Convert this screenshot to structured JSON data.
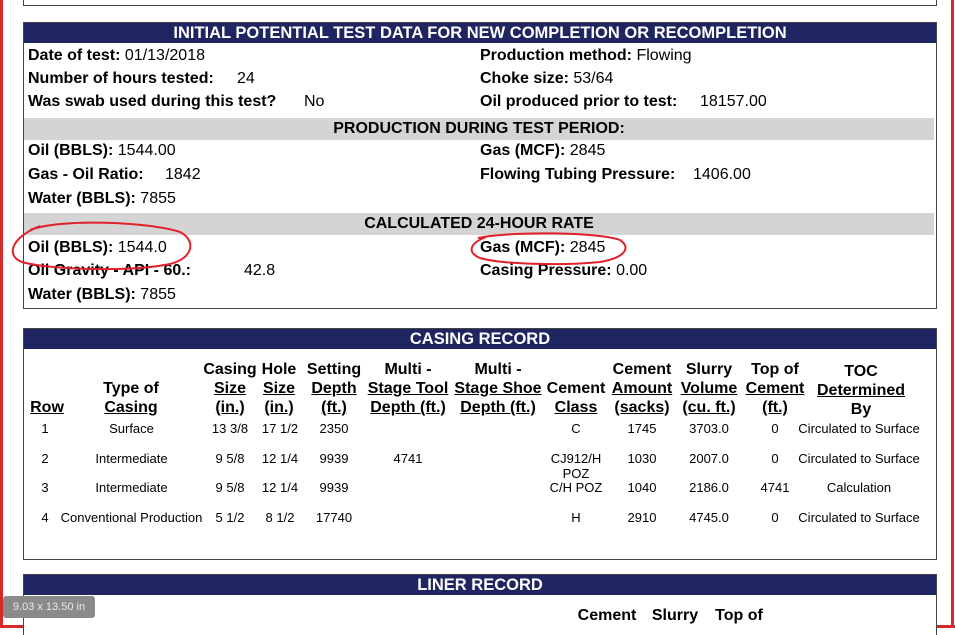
{
  "initial_potential": {
    "title": "INITIAL POTENTIAL TEST DATA FOR NEW COMPLETION OR RECOMPLETION",
    "date_of_test_label": "Date of test:",
    "date_of_test": "01/13/2018",
    "hours_tested_label": "Number of hours tested:",
    "hours_tested": "24",
    "swab_label": "Was swab used during this test?",
    "swab": "No",
    "production_method_label": "Production method:",
    "production_method": "Flowing",
    "choke_size_label": "Choke size:",
    "choke_size": "53/64",
    "oil_prior_label": "Oil produced prior to test:",
    "oil_prior": "18157.00",
    "test_period_title": "PRODUCTION DURING TEST PERIOD:",
    "tp_oil_label": "Oil (BBLS):",
    "tp_oil": "1544.00",
    "tp_gor_label": "Gas - Oil Ratio:",
    "tp_gor": "1842",
    "tp_water_label": "Water (BBLS):",
    "tp_water": "7855",
    "tp_gas_label": "Gas (MCF):",
    "tp_gas": "2845",
    "tp_ftp_label": "Flowing Tubing Pressure:",
    "tp_ftp": "1406.00",
    "rate_title": "CALCULATED 24-HOUR RATE",
    "r_oil_label": "Oil (BBLS):",
    "r_oil": "1544.0",
    "r_gravity_label": "Oil Gravity - API - 60.:",
    "r_gravity": "42.8",
    "r_water_label": "Water (BBLS):",
    "r_water": "7855",
    "r_gas_label": "Gas (MCF):",
    "r_gas": "2845",
    "r_casing_label": "Casing Pressure:",
    "r_casing": "0.00"
  },
  "casing_record": {
    "title": "CASING RECORD",
    "headers": {
      "row": "Row",
      "type_1": "Type of",
      "type_2": "Casing",
      "csize_1": "Casing",
      "csize_2": "Size",
      "csize_3": "(in.)",
      "hole_1": "Hole",
      "hole_2": "Size",
      "hole_3": "(in.)",
      "depth_1": "Setting",
      "depth_2": "Depth",
      "depth_3": "(ft.)",
      "mst_1": "Multi -",
      "mst_2": "Stage Tool",
      "mst_3": "Depth (ft.)",
      "mss_1": "Multi -",
      "mss_2": "Stage Shoe",
      "mss_3": "Depth (ft.)",
      "class_1": "Cement",
      "class_2": "Class",
      "amt_1": "Cement",
      "amt_2": "Amount",
      "amt_3": "(sacks)",
      "slurry_1": "Slurry",
      "slurry_2": "Volume",
      "slurry_3": "(cu. ft.)",
      "top_1": "Top of",
      "top_2": "Cement",
      "top_3": "(ft.)",
      "toc_1": "TOC",
      "toc_2": "Determined",
      "toc_3": "By"
    },
    "rows": [
      {
        "row": "1",
        "type": "Surface",
        "csize": "13 3/8",
        "hole": "17 1/2",
        "depth": "2350",
        "mst": "",
        "mss": "",
        "class": "C",
        "amt": "1745",
        "slurry": "3703.0",
        "top": "0",
        "toc": "Circulated to Surface"
      },
      {
        "row": "2",
        "type": "Intermediate",
        "csize": "9 5/8",
        "hole": "12 1/4",
        "depth": "9939",
        "mst": "4741",
        "mss": "",
        "class": "CJ912/H\nPOZ",
        "amt": "1030",
        "slurry": "2007.0",
        "top": "0",
        "toc": "Circulated to Surface"
      },
      {
        "row": "3",
        "type": "Intermediate",
        "csize": "9 5/8",
        "hole": "12 1/4",
        "depth": "9939",
        "mst": "",
        "mss": "",
        "class": "C/H POZ",
        "amt": "1040",
        "slurry": "2186.0",
        "top": "4741",
        "toc": "Calculation"
      },
      {
        "row": "4",
        "type": "Conventional Production",
        "csize": "5 1/2",
        "hole": "8 1/2",
        "depth": "17740",
        "mst": "",
        "mss": "",
        "class": "H",
        "amt": "2910",
        "slurry": "4745.0",
        "top": "0",
        "toc": "Circulated to Surface"
      }
    ]
  },
  "liner_record": {
    "title": "LINER RECORD",
    "h_cement": "Cement",
    "h_slurry": "Slurry",
    "h_top": "Top of"
  },
  "page_size_badge": "9.03 x 13.50 in",
  "colors": {
    "header_bg": "#1f2560",
    "band_bg": "#d4d4d4",
    "annotation_red": "#e0202a"
  }
}
